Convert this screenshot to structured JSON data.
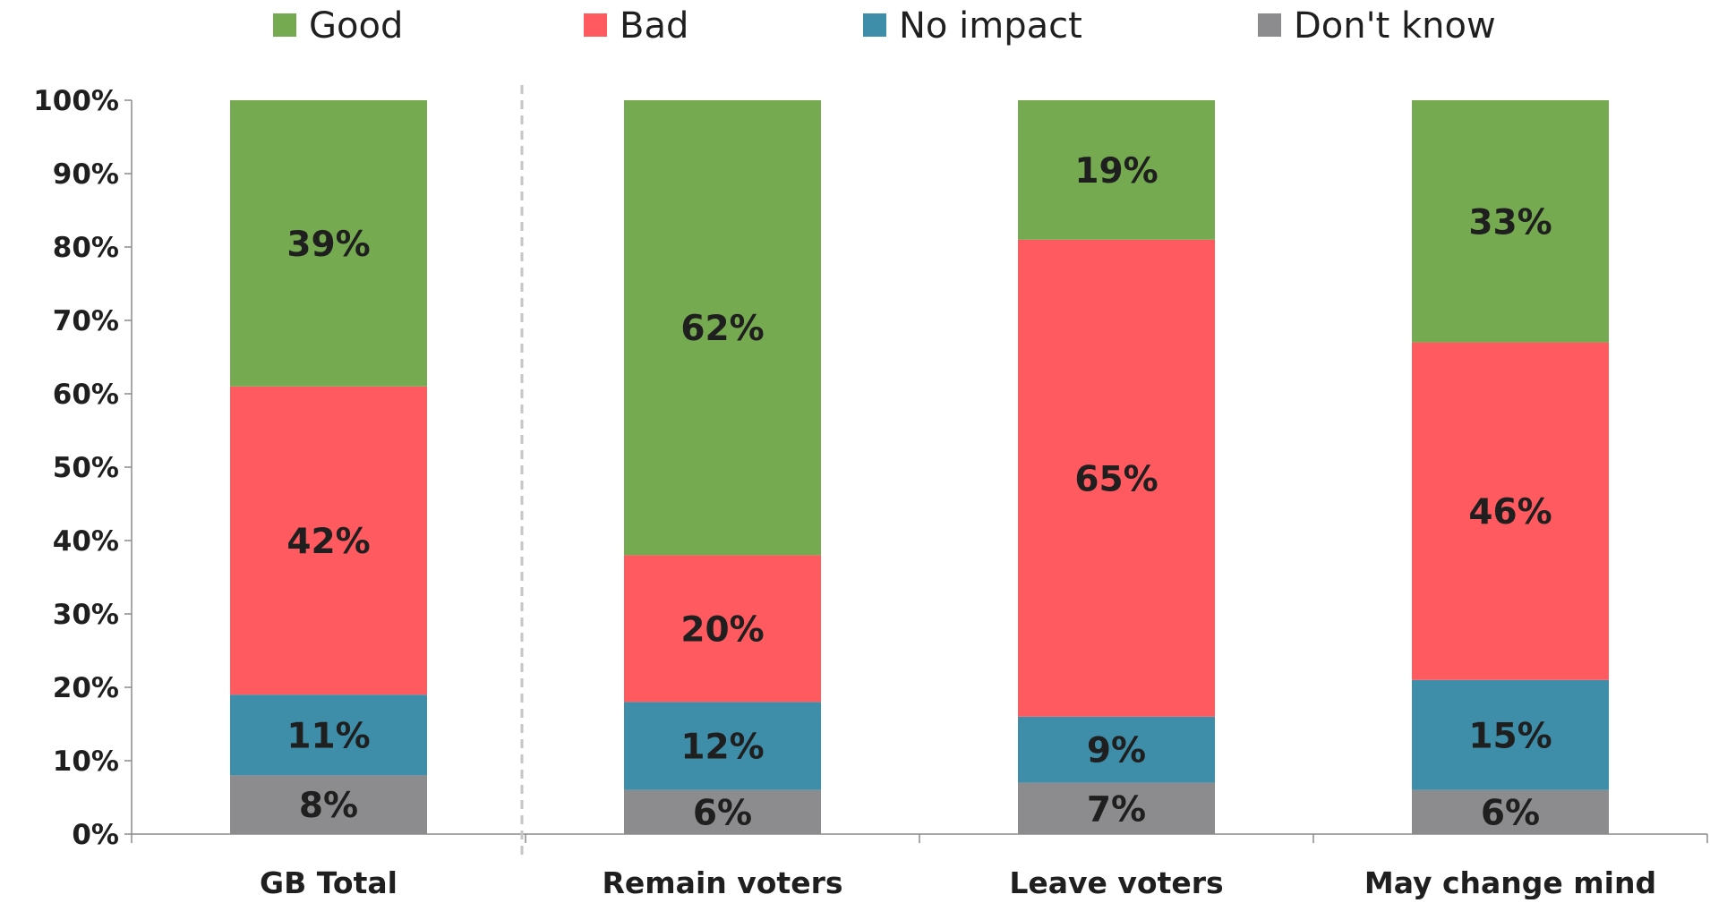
{
  "chart_data": {
    "type": "bar",
    "stacked": true,
    "orientation": "vertical",
    "categories": [
      "GB Total",
      "Remain voters",
      "Leave voters",
      "May change mind"
    ],
    "series": [
      {
        "name": "Don't know",
        "color": "#8c8c8e",
        "values": [
          8,
          6,
          7,
          6
        ],
        "labels": [
          "8%",
          "6%",
          "7%",
          "6%"
        ]
      },
      {
        "name": "No impact",
        "color": "#3f8ea9",
        "values": [
          11,
          12,
          9,
          15
        ],
        "labels": [
          "11%",
          "12%",
          "9%",
          "15%"
        ]
      },
      {
        "name": "Bad",
        "color": "#ff5a5f",
        "values": [
          42,
          20,
          65,
          46
        ],
        "labels": [
          "42%",
          "20%",
          "65%",
          "46%"
        ]
      },
      {
        "name": "Good",
        "color": "#76aa50",
        "values": [
          39,
          62,
          19,
          33
        ],
        "labels": [
          "39%",
          "62%",
          "19%",
          "33%"
        ]
      }
    ],
    "legend_order": [
      "Good",
      "Bad",
      "No impact",
      "Don't know"
    ],
    "legend_position": "top",
    "ylim": [
      0,
      100
    ],
    "y_ticks": [
      "0%",
      "10%",
      "20%",
      "30%",
      "40%",
      "50%",
      "60%",
      "70%",
      "80%",
      "90%",
      "100%"
    ],
    "grid": false,
    "separator_after_category": "GB Total",
    "title": "",
    "xlabel": "",
    "ylabel": ""
  }
}
